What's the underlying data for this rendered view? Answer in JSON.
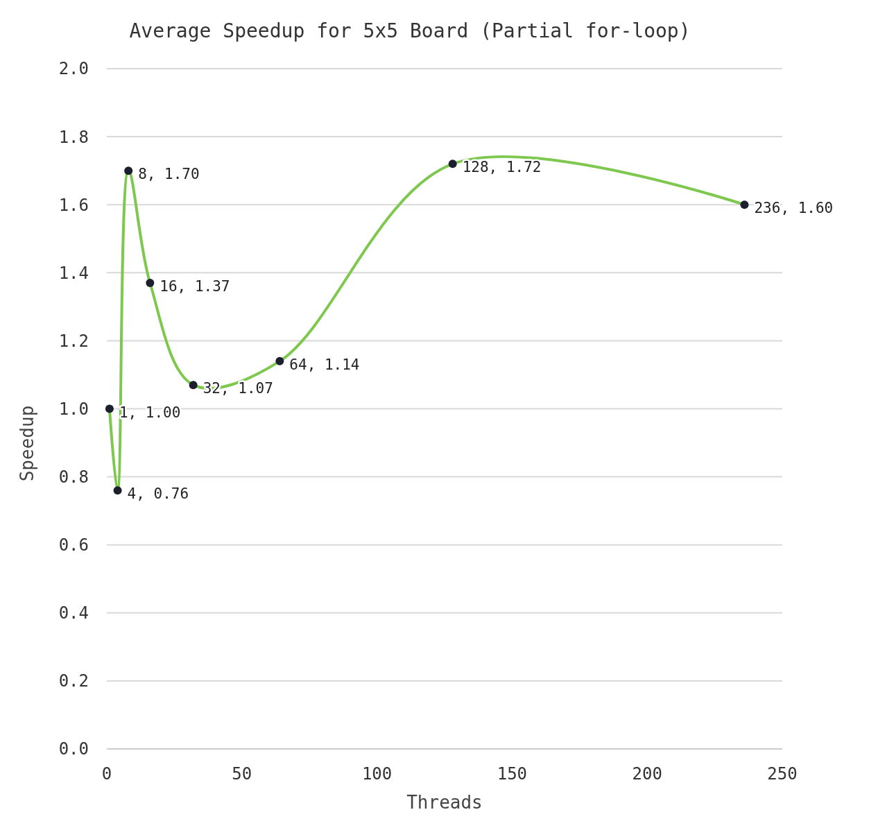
{
  "chart_data": {
    "type": "line",
    "title": "Average Speedup for 5x5 Board (Partial for-loop)",
    "xlabel": "Threads",
    "ylabel": "Speedup",
    "x": [
      1,
      4,
      8,
      16,
      32,
      64,
      128,
      236
    ],
    "series": [
      {
        "color": "#7ec850",
        "values": [
          1.0,
          0.76,
          1.7,
          1.37,
          1.07,
          1.14,
          1.72,
          1.6
        ],
        "value_labels": [
          "1, 1.00",
          "4, 0.76",
          "8, 1.70",
          "16, 1.37",
          "32, 1.07",
          "64, 1.14",
          "128, 1.72",
          "236, 1.60"
        ]
      }
    ],
    "xlim": [
      0,
      250
    ],
    "xticks": [
      0,
      50,
      100,
      150,
      200,
      250
    ],
    "ylim": [
      0,
      2
    ],
    "yticks": [
      {
        "value": 0,
        "label": "0.0"
      },
      {
        "value": 0.2,
        "label": "0.2"
      },
      {
        "value": 0.4,
        "label": "0.4"
      },
      {
        "value": 0.6,
        "label": "0.6"
      },
      {
        "value": 0.8,
        "label": "0.8"
      },
      {
        "value": 1,
        "label": "1.0"
      },
      {
        "value": 1.2,
        "label": "1.2"
      },
      {
        "value": 1.4,
        "label": "1.4"
      },
      {
        "value": 1.6,
        "label": "1.6"
      },
      {
        "value": 1.8,
        "label": "1.8"
      },
      {
        "value": 2,
        "label": "2.0"
      }
    ],
    "grid": "y",
    "marker": "circle"
  }
}
